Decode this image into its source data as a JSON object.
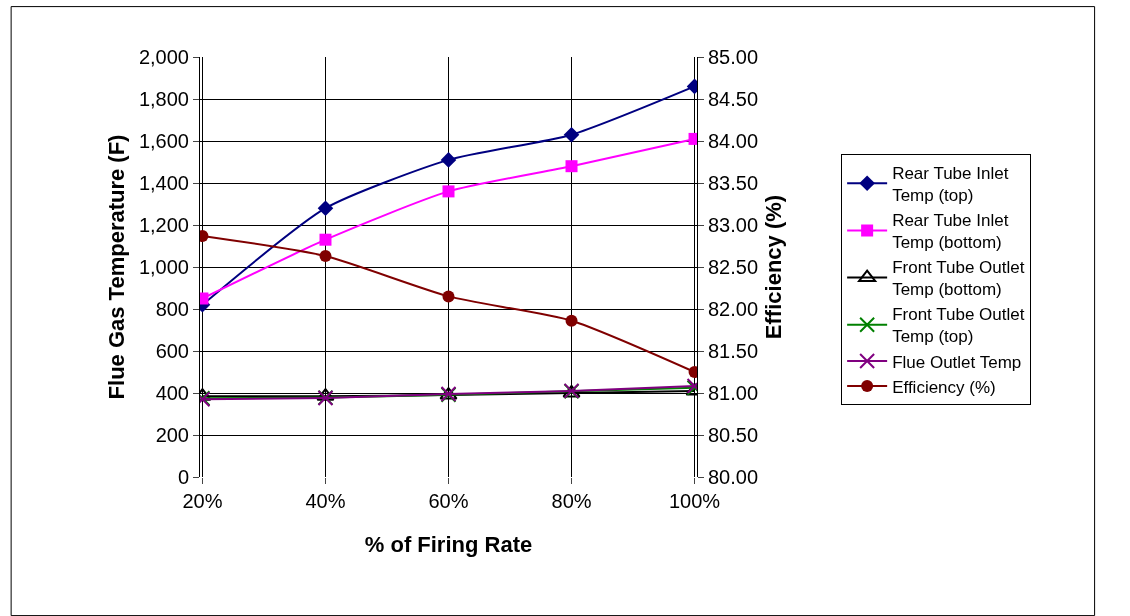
{
  "chart_data": {
    "type": "line",
    "xlabel": "% of Firing Rate",
    "ylabel": "Flue Gas Temperature (F)",
    "y2label": "Efficiency (%)",
    "categories": [
      "20%",
      "40%",
      "60%",
      "80%",
      "100%"
    ],
    "ylim": [
      0,
      2000
    ],
    "yticks": [
      0,
      200,
      400,
      600,
      800,
      {
        "value": 1000,
        "label": "1,000"
      },
      {
        "value": 1200,
        "label": "1,200"
      },
      {
        "value": 1400,
        "label": "1,400"
      },
      {
        "value": 1600,
        "label": "1,600"
      },
      {
        "value": 1800,
        "label": "1,800"
      },
      {
        "value": 2000,
        "label": "2,000"
      }
    ],
    "y2lim": [
      80,
      85
    ],
    "y2ticks": [
      {
        "value": 80,
        "label": "80.00"
      },
      {
        "value": 80.5,
        "label": "80.50"
      },
      {
        "value": 81,
        "label": "81.00"
      },
      {
        "value": 81.5,
        "label": "81.50"
      },
      {
        "value": 82,
        "label": "82.00"
      },
      {
        "value": 82.5,
        "label": "82.50"
      },
      {
        "value": 83,
        "label": "83.00"
      },
      {
        "value": 83.5,
        "label": "83.50"
      },
      {
        "value": 84,
        "label": "84.00"
      },
      {
        "value": 84.5,
        "label": "84.50"
      },
      {
        "value": 85,
        "label": "85.00"
      }
    ],
    "grid": true,
    "legend": "right",
    "series": [
      {
        "name": "Rear Tube Inlet Temp (top)",
        "color": "#000080",
        "marker": "diamond",
        "values": [
          820,
          1280,
          1510,
          1630,
          1860
        ]
      },
      {
        "name": "Rear Tube Inlet Temp (bottom)",
        "color": "#ff00ff",
        "marker": "square",
        "values": [
          850,
          1130,
          1360,
          1480,
          1610
        ]
      },
      {
        "name": "Front Tube Outlet Temp (bottom)",
        "color": "#000000",
        "marker": "triangle",
        "values": [
          385,
          385,
          390,
          400,
          410
        ]
      },
      {
        "name": "Front Tube Outlet Temp (top)",
        "color": "#008000",
        "marker": "cross",
        "values": [
          375,
          378,
          392,
          408,
          425
        ]
      },
      {
        "name": "Flue Outlet Temp",
        "color": "#800080",
        "marker": "cross",
        "values": [
          370,
          376,
          395,
          410,
          433
        ]
      },
      {
        "name": "Efficiency (%)",
        "color": "#800000",
        "marker": "circle",
        "axis": "y2",
        "values": [
          82.87,
          82.63,
          82.15,
          81.86,
          81.25
        ]
      }
    ]
  }
}
